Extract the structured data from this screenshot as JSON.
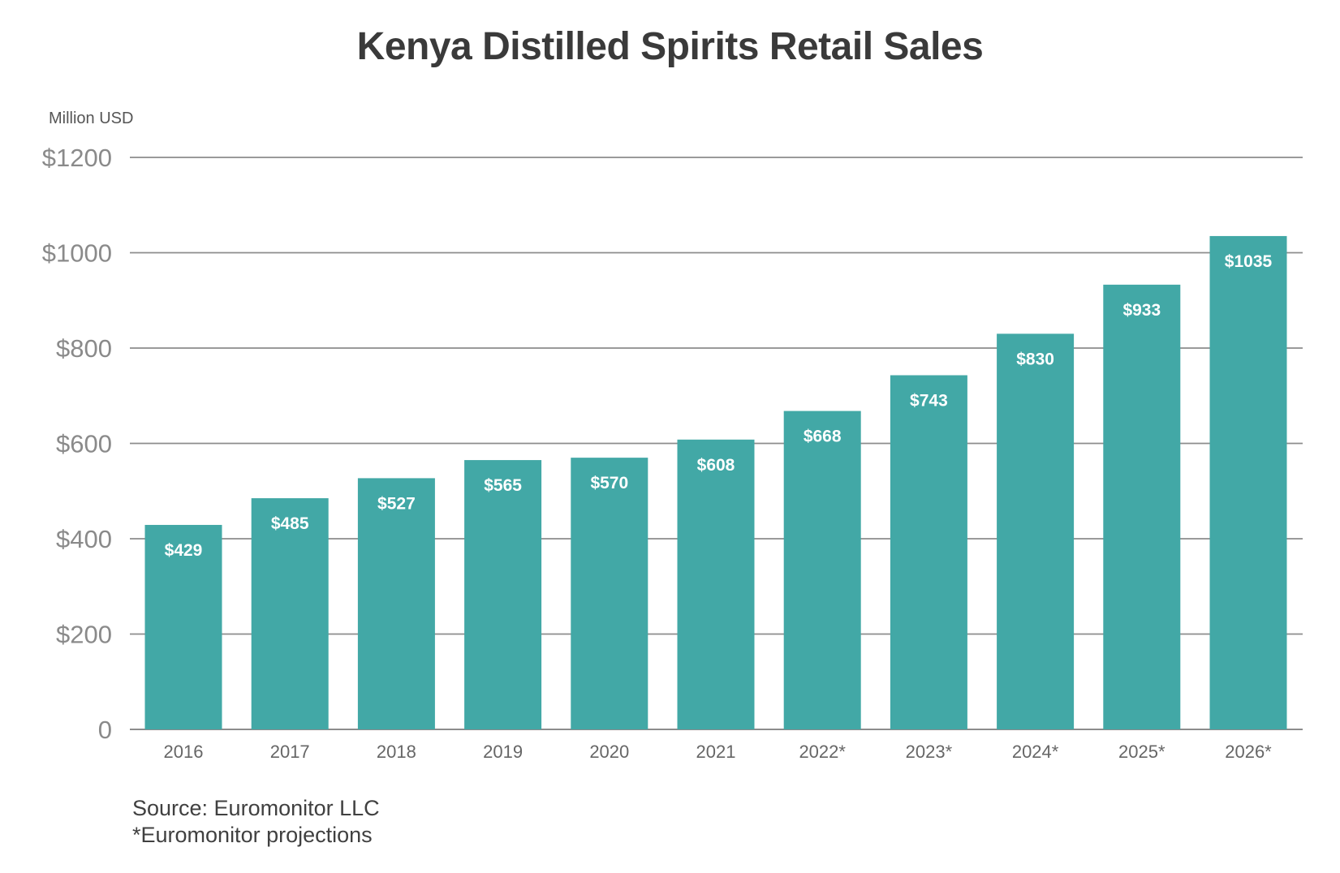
{
  "chart_data": {
    "type": "bar",
    "title": "Kenya Distilled Spirits Retail Sales",
    "ylabel": "Million USD",
    "xlabel": "",
    "categories": [
      "2016",
      "2017",
      "2018",
      "2019",
      "2020",
      "2021",
      "2022*",
      "2023*",
      "2024*",
      "2025*",
      "2026*"
    ],
    "values": [
      429,
      485,
      527,
      565,
      570,
      608,
      668,
      743,
      830,
      933,
      1035
    ],
    "value_labels": [
      "$429",
      "$485",
      "$527",
      "$565",
      "$570",
      "$608",
      "$668",
      "$743",
      "$830",
      "$933",
      "$1035"
    ],
    "ylim": [
      0,
      1200
    ],
    "yticks": [
      0,
      200,
      400,
      600,
      800,
      1000,
      1200
    ],
    "ytick_labels": [
      "0",
      "$200",
      "$400",
      "$600",
      "$800",
      "$1000",
      "$1200"
    ],
    "grid": true,
    "legend": "none",
    "colors": {
      "bar": "#42a8a6",
      "gridline": "#8c8c8c",
      "tick_label": "#8a8a8a",
      "value_label": "#ffffff",
      "title": "#3a3a3a"
    }
  },
  "notes": {
    "source": "Source: Euromonitor LLC",
    "projections": "*Euromonitor projections"
  }
}
